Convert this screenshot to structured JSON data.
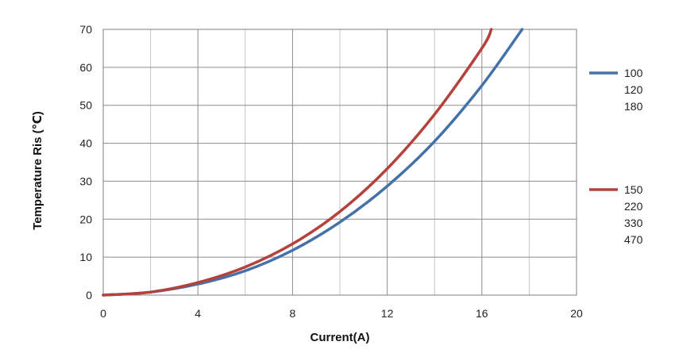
{
  "chart_data": {
    "type": "line",
    "xlabel": "Current(A)",
    "ylabel": "Temperature Ris (℃)",
    "xlim": [
      0,
      20
    ],
    "ylim": [
      0,
      70
    ],
    "x_ticks": [
      "0",
      "4",
      "8",
      "12",
      "16",
      "20"
    ],
    "y_ticks": [
      "0",
      "10",
      "20",
      "30",
      "40",
      "50",
      "60",
      "70"
    ],
    "grid": true,
    "legend_position": "right",
    "series": [
      {
        "labels": [
          "100",
          "120",
          "180"
        ],
        "color": "#4472a8",
        "x": [
          0,
          2,
          4,
          6,
          8,
          10,
          12,
          14,
          16,
          17.7
        ],
        "y": [
          0,
          0.8,
          2.9,
          6.4,
          11.8,
          19.2,
          28.7,
          40.5,
          55.2,
          70
        ]
      },
      {
        "labels": [
          "150",
          "220",
          "330",
          "470"
        ],
        "color": "#b5413d",
        "x": [
          0,
          2,
          4,
          6,
          8,
          10,
          12,
          14,
          16,
          16.4
        ],
        "y": [
          0,
          0.8,
          3.3,
          7.4,
          13.5,
          22.0,
          33.3,
          47.6,
          65.0,
          70
        ]
      }
    ]
  }
}
